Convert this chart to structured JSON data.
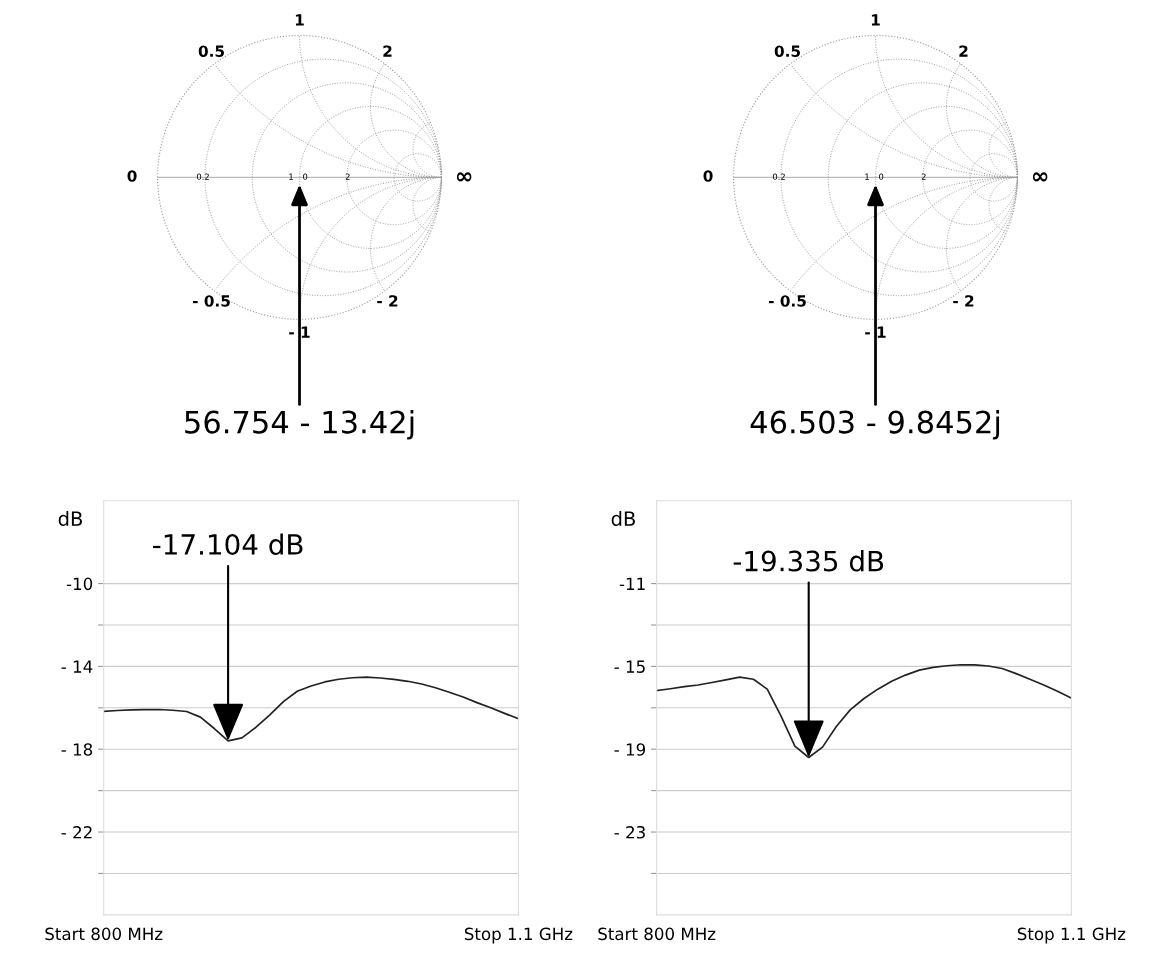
{
  "chart_data": [
    {
      "type": "other",
      "xlabel": "56.754 - 13.42j",
      "annotations": [
        "1",
        "0.5",
        "2",
        "0",
        "0.2",
        "1",
        "0",
        "2",
        "∞",
        "- 0.5",
        "- 1",
        "- 2"
      ]
    },
    {
      "type": "other",
      "xlabel": "46.503 - 9.8452j",
      "annotations": [
        "1",
        "0.5",
        "2",
        "0",
        "0.2",
        "1",
        "0",
        "2",
        "∞",
        "- 0.5",
        "- 1",
        "- 2"
      ]
    },
    {
      "type": "line",
      "ylabel": "dB",
      "grid": "y",
      "ylim": [
        -26,
        -6
      ],
      "categories": [
        null,
        null,
        null,
        null,
        null,
        null,
        null,
        null,
        null,
        null,
        null,
        null,
        null,
        null,
        null,
        null,
        null,
        null,
        null,
        null,
        null,
        null,
        null,
        null,
        null,
        null,
        null,
        null,
        null,
        null,
        null
      ],
      "yticks": [
        {
          "value": -24,
          "label": null
        },
        {
          "value": -22,
          "label": "- 22"
        },
        {
          "value": -20,
          "label": null
        },
        {
          "value": -18,
          "label": "- 18"
        },
        {
          "value": -16,
          "label": null
        },
        {
          "value": -14,
          "label": "- 14"
        },
        {
          "value": -12,
          "label": null
        },
        {
          "value": -10,
          "label": "-10"
        }
      ],
      "series": [
        {
          "color": "#222222",
          "values": [
            -16.17,
            -16.13,
            -16.1,
            -16.09,
            -16.08,
            -16.12,
            -16.18,
            -16.45,
            -17.0,
            -17.6,
            -17.45,
            -16.95,
            -16.35,
            -15.7,
            -15.2,
            -14.95,
            -14.75,
            -14.62,
            -14.55,
            -14.52,
            -14.56,
            -14.63,
            -14.72,
            -14.85,
            -15.03,
            -15.25,
            -15.48,
            -15.75,
            -16.0,
            -16.27,
            -16.53
          ]
        }
      ],
      "annotations": [
        "-17.104 dB",
        "Start 800 MHz",
        "Stop 1.1 GHz"
      ]
    },
    {
      "type": "line",
      "ylabel": "dB",
      "grid": "y",
      "ylim": [
        -27,
        -7
      ],
      "categories": [
        null,
        null,
        null,
        null,
        null,
        null,
        null,
        null,
        null,
        null,
        null,
        null,
        null,
        null,
        null,
        null,
        null,
        null,
        null,
        null,
        null,
        null,
        null,
        null,
        null,
        null,
        null,
        null,
        null,
        null,
        null
      ],
      "yticks": [
        {
          "value": -25,
          "label": null
        },
        {
          "value": -23,
          "label": "- 23"
        },
        {
          "value": -21,
          "label": null
        },
        {
          "value": -19,
          "label": "- 19"
        },
        {
          "value": -17,
          "label": null
        },
        {
          "value": -15,
          "label": "- 15"
        },
        {
          "value": -13,
          "label": null
        },
        {
          "value": -11,
          "label": "-11"
        }
      ],
      "series": [
        {
          "color": "#222222",
          "values": [
            -16.17,
            -16.08,
            -15.98,
            -15.9,
            -15.78,
            -15.65,
            -15.52,
            -15.62,
            -16.1,
            -17.4,
            -18.85,
            -19.4,
            -18.9,
            -17.9,
            -17.1,
            -16.55,
            -16.1,
            -15.72,
            -15.42,
            -15.18,
            -15.05,
            -14.97,
            -14.92,
            -14.93,
            -14.98,
            -15.1,
            -15.35,
            -15.62,
            -15.9,
            -16.2,
            -16.53
          ]
        }
      ],
      "annotations": [
        "-19.335 dB",
        "Start 800 MHz",
        "Stop 1.1 GHz"
      ]
    }
  ]
}
